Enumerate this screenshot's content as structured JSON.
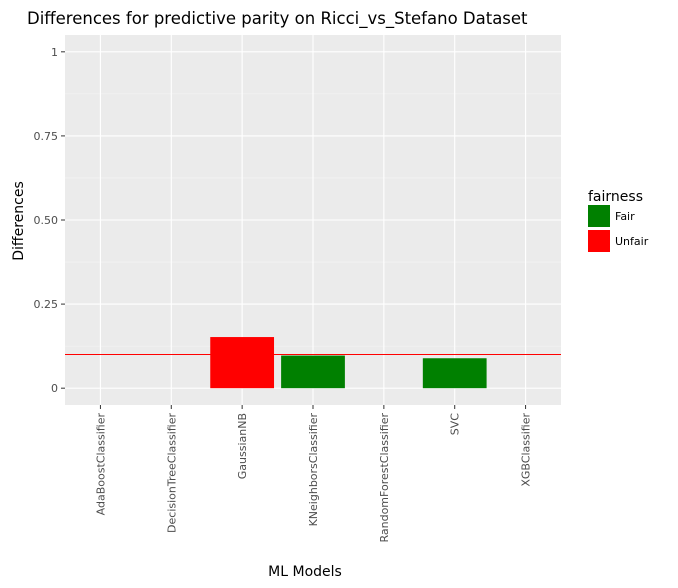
{
  "chart_data": {
    "type": "bar",
    "title": "Differences for predictive parity on Ricci_vs_Stefano Dataset",
    "xlabel": "ML Models",
    "ylabel": "Differences",
    "categories": [
      "AdaBoostClassifier",
      "DecisionTreeClassifier",
      "GaussianNB",
      "KNeighborsClassifier",
      "RandomForestClassifier",
      "SVC",
      "XGBClassifier"
    ],
    "values": [
      0,
      0,
      0.152,
      0.097,
      0,
      0.089,
      0
    ],
    "fairness": [
      "Fair",
      "Fair",
      "Unfair",
      "Fair",
      "Fair",
      "Fair",
      "Fair"
    ],
    "ylim": [
      -0.05,
      1.05
    ],
    "yticks": [
      0,
      0.25,
      0.5,
      0.75,
      1
    ],
    "ytick_labels": [
      "0",
      "0.25",
      "0.50",
      "0.75",
      "1"
    ],
    "threshold": 0.1,
    "threshold_color": "#ff0000",
    "grid": true,
    "panel_background": "#ebebeb",
    "legend": {
      "title": "fairness",
      "placement": "right",
      "entries": [
        {
          "label": "Fair",
          "color": "#008000"
        },
        {
          "label": "Unfair",
          "color": "#ff0000"
        }
      ]
    }
  }
}
